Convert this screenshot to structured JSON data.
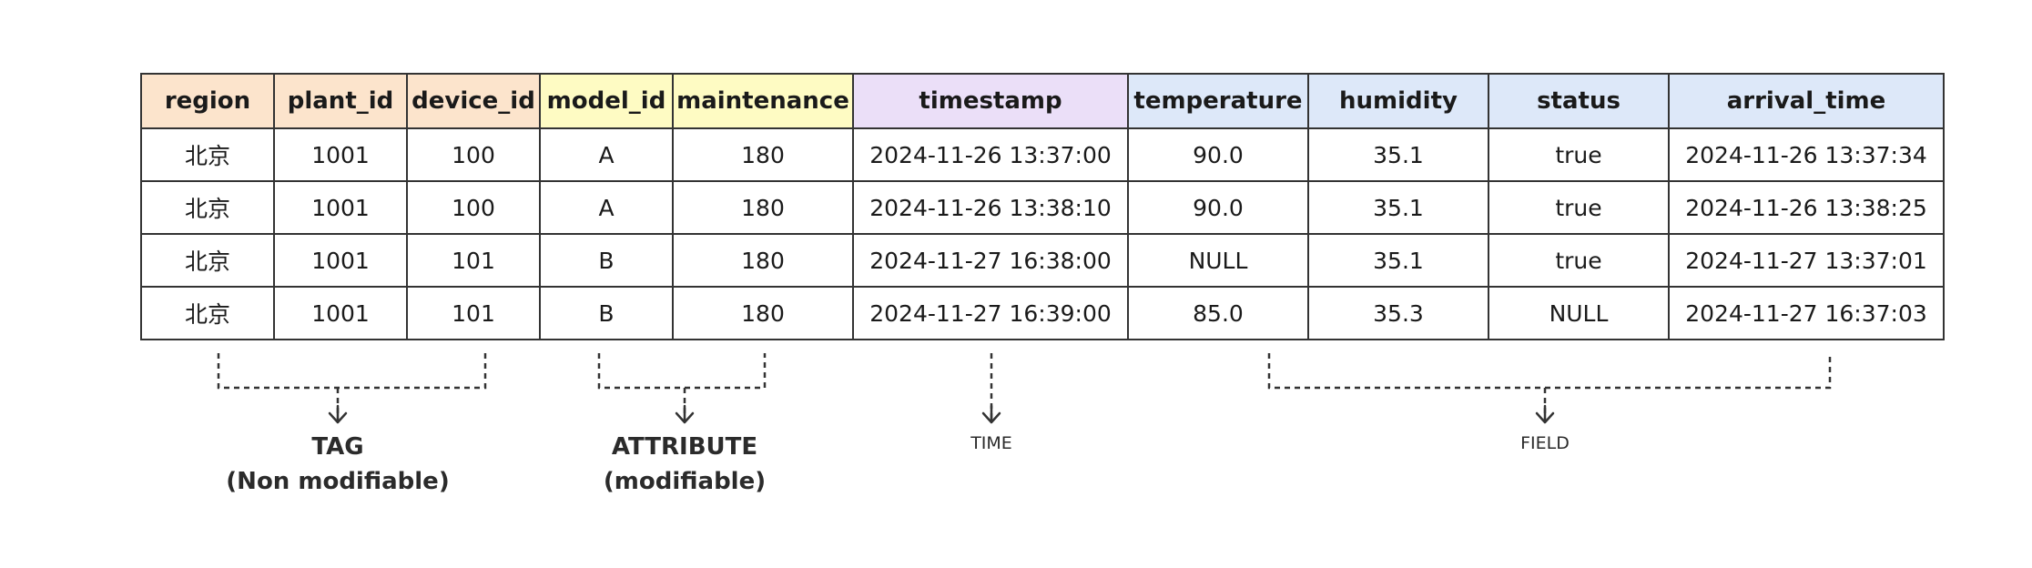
{
  "columns": [
    {
      "key": "region",
      "label": "region",
      "group": "tag"
    },
    {
      "key": "plant_id",
      "label": "plant_id",
      "group": "tag"
    },
    {
      "key": "device_id",
      "label": "device_id",
      "group": "tag"
    },
    {
      "key": "model_id",
      "label": "model_id",
      "group": "attr"
    },
    {
      "key": "maintenance",
      "label": "maintenance",
      "group": "attr"
    },
    {
      "key": "timestamp",
      "label": "timestamp",
      "group": "time"
    },
    {
      "key": "temperature",
      "label": "temperature",
      "group": "field"
    },
    {
      "key": "humidity",
      "label": "humidity",
      "group": "field"
    },
    {
      "key": "status",
      "label": "status",
      "group": "field"
    },
    {
      "key": "arrival_time",
      "label": "arrival_time",
      "group": "field"
    }
  ],
  "rows": [
    [
      "北京",
      "1001",
      "100",
      "A",
      "180",
      "2024-11-26 13:37:00",
      "90.0",
      "35.1",
      "true",
      "2024-11-26 13:37:34"
    ],
    [
      "北京",
      "1001",
      "100",
      "A",
      "180",
      "2024-11-26 13:38:10",
      "90.0",
      "35.1",
      "true",
      "2024-11-26 13:38:25"
    ],
    [
      "北京",
      "1001",
      "101",
      "B",
      "180",
      "2024-11-27 16:38:00",
      "NULL",
      "35.1",
      "true",
      "2024-11-27 13:37:01"
    ],
    [
      "北京",
      "1001",
      "101",
      "B",
      "180",
      "2024-11-27 16:39:00",
      "85.0",
      "35.3",
      "NULL",
      "2024-11-27 16:37:03"
    ]
  ],
  "groups": {
    "tag": {
      "line1": "TAG",
      "line2": "(Non modifiable)",
      "color": "#fce4cc"
    },
    "attr": {
      "line1": "ATTRIBUTE",
      "line2": "(modifiable)",
      "color": "#fefbc3"
    },
    "time": {
      "line1": "TIME",
      "color": "#ebdff8"
    },
    "field": {
      "line1": "FIELD",
      "color": "#dde8f9"
    }
  }
}
